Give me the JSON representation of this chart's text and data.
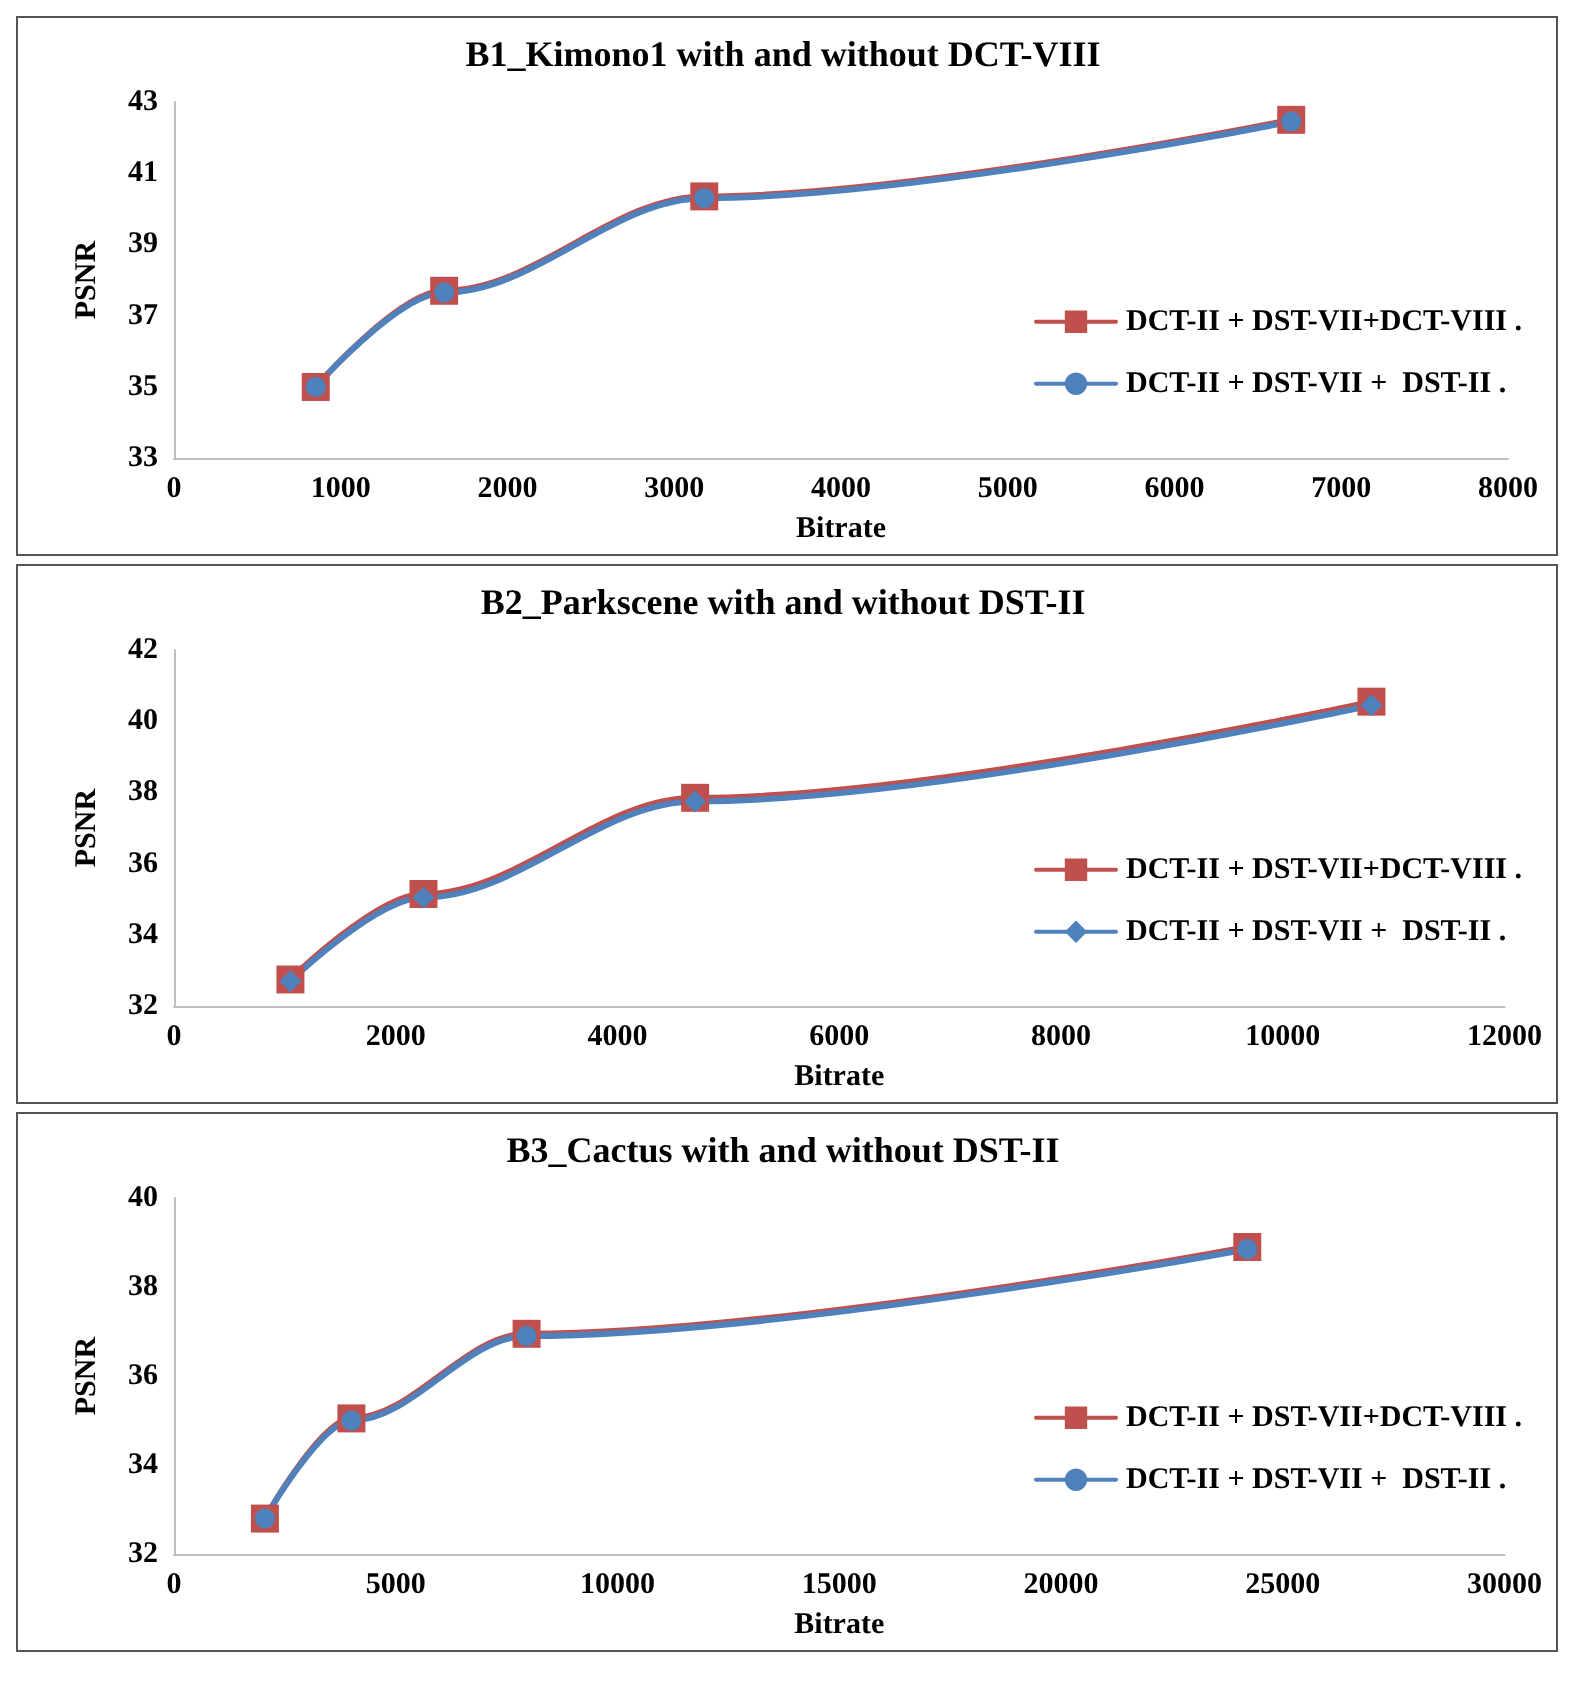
{
  "chart_data": [
    {
      "type": "line",
      "title": "B1_Kimono1 with and without DCT-VIII",
      "xlabel": "Bitrate",
      "ylabel": "PSNR",
      "xlim": [
        0,
        8000
      ],
      "xticks": [
        0,
        1000,
        2000,
        3000,
        4000,
        5000,
        6000,
        7000,
        8000
      ],
      "ylim": [
        33,
        43
      ],
      "yticks": [
        33,
        35,
        37,
        39,
        41,
        43
      ],
      "grid": false,
      "legend": "right",
      "series": [
        {
          "name": "DCT-II + DST-VII+DCT-VIII .",
          "color": "#c0504d",
          "marker": "square",
          "x": [
            850,
            1620,
            3180,
            6700
          ],
          "values": [
            35.0,
            37.7,
            40.35,
            42.5
          ]
        },
        {
          "name": "DCT-II + DST-VII +  DST-II .",
          "color": "#4f81bd",
          "marker": "circle",
          "x": [
            850,
            1620,
            3180,
            6700
          ],
          "values": [
            35.0,
            37.65,
            40.3,
            42.45
          ]
        }
      ]
    },
    {
      "type": "line",
      "title": "B2_Parkscene with and without DST-II",
      "xlabel": "Bitrate",
      "ylabel": "PSNR",
      "xlim": [
        0,
        12000
      ],
      "xticks": [
        0,
        2000,
        4000,
        6000,
        8000,
        10000,
        12000
      ],
      "ylim": [
        32,
        42
      ],
      "yticks": [
        32,
        34,
        36,
        38,
        40,
        42
      ],
      "grid": false,
      "legend": "right",
      "series": [
        {
          "name": "DCT-II + DST-VII+DCT-VIII .",
          "color": "#c0504d",
          "marker": "square",
          "x": [
            1050,
            2250,
            4700,
            10800
          ],
          "values": [
            32.75,
            35.15,
            37.85,
            40.55
          ]
        },
        {
          "name": "DCT-II + DST-VII +  DST-II .",
          "color": "#4f81bd",
          "marker": "diamond",
          "x": [
            1050,
            2250,
            4700,
            10800
          ],
          "values": [
            32.7,
            35.05,
            37.75,
            40.45
          ]
        }
      ]
    },
    {
      "type": "line",
      "title": "B3_Cactus with and without DST-II",
      "xlabel": "Bitrate",
      "ylabel": "PSNR",
      "xlim": [
        0,
        30000
      ],
      "xticks": [
        0,
        5000,
        10000,
        15000,
        20000,
        25000,
        30000
      ],
      "ylim": [
        32,
        40
      ],
      "yticks": [
        32,
        34,
        36,
        38,
        40
      ],
      "grid": false,
      "legend": "right",
      "series": [
        {
          "name": "DCT-II + DST-VII+DCT-VIII .",
          "color": "#c0504d",
          "marker": "square",
          "x": [
            2050,
            4000,
            7950,
            24200
          ],
          "values": [
            32.8,
            35.05,
            36.95,
            38.9
          ]
        },
        {
          "name": "DCT-II + DST-VII +  DST-II .",
          "color": "#4f81bd",
          "marker": "circle",
          "x": [
            2050,
            4000,
            7950,
            24200
          ],
          "values": [
            32.8,
            35.0,
            36.9,
            38.85
          ]
        }
      ]
    }
  ]
}
